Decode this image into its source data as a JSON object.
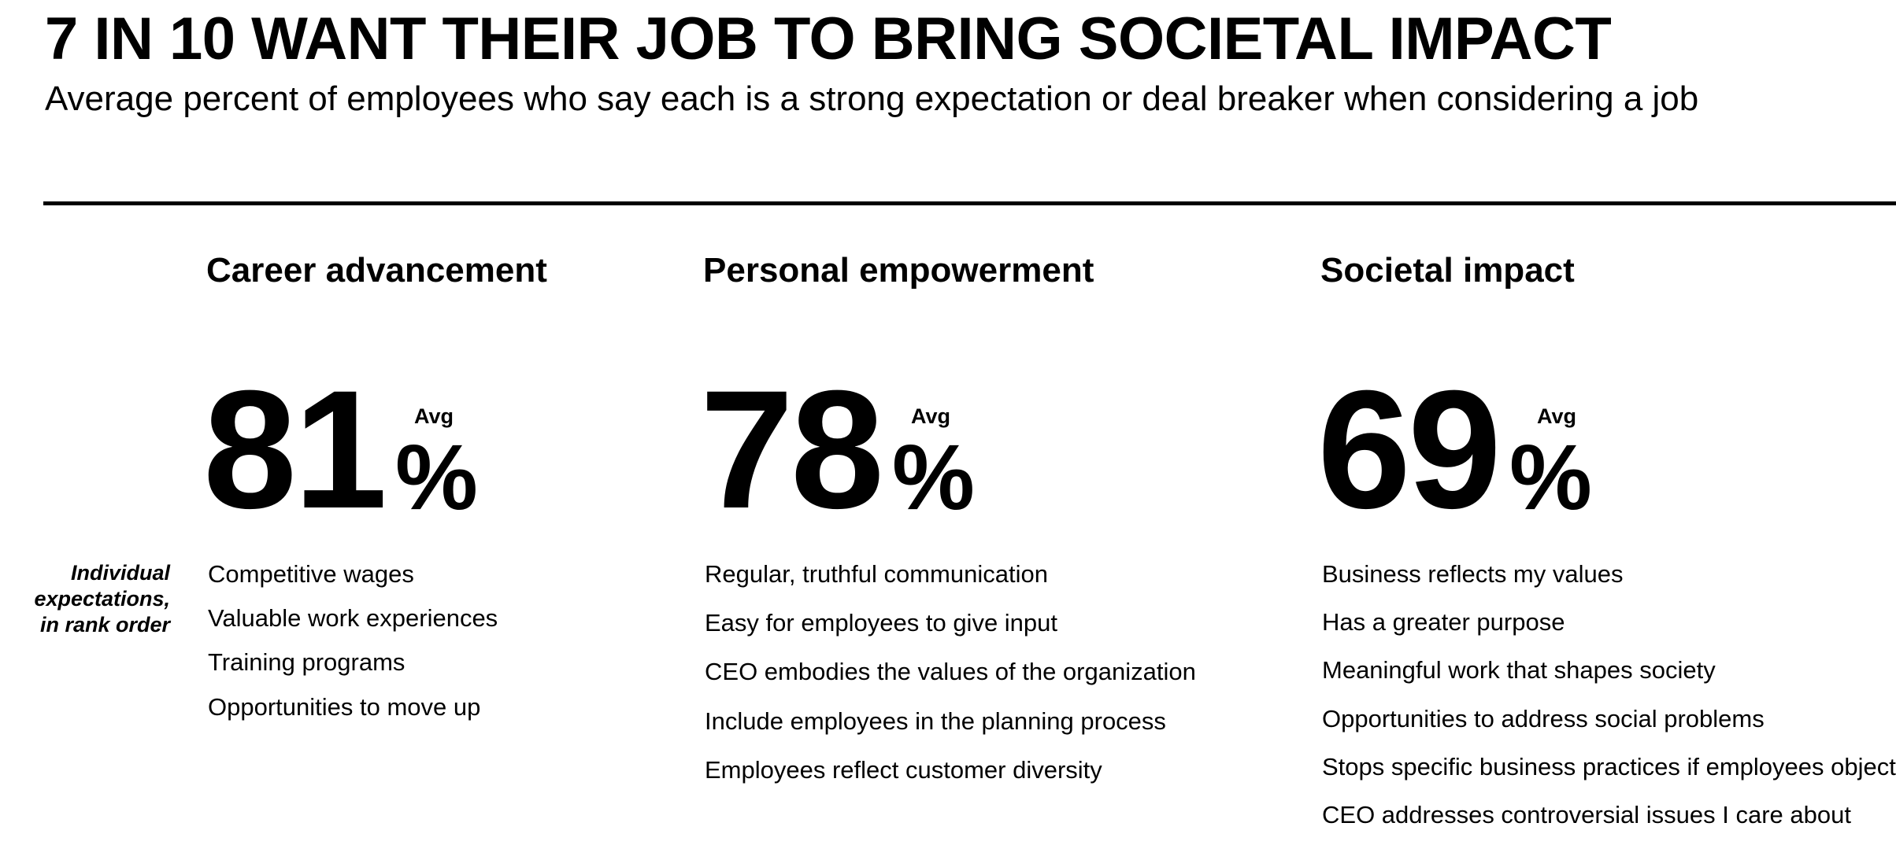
{
  "chart_data": {
    "type": "table",
    "title": "7 IN 10 WANT THEIR JOB TO BRING SOCIETAL IMPACT",
    "subtitle": "Average percent of employees who say each is a strong expectation or deal breaker when considering a job",
    "row_label": "Individual expectations, in rank order",
    "row_label_lines": [
      "Individual",
      "expectations,",
      "in rank order"
    ],
    "avg_label": "Avg",
    "unit": "%",
    "categories": [
      {
        "name": "Career advancement",
        "value": 81,
        "value_text": "81",
        "items": [
          "Competitive wages",
          "Valuable work experiences",
          "Training programs",
          "Opportunities to move up"
        ]
      },
      {
        "name": "Personal empowerment",
        "value": 78,
        "value_text": "78",
        "items": [
          "Regular, truthful communication",
          "Easy for employees to give input",
          "CEO embodies the values of the organization",
          "Include employees in the planning process",
          "Employees reflect customer diversity"
        ]
      },
      {
        "name": "Societal impact",
        "value": 69,
        "value_text": "69",
        "items": [
          "Business reflects my values",
          "Has a greater purpose",
          "Meaningful work that shapes society",
          "Opportunities to address social problems",
          "Stops specific business practices if employees object",
          "CEO addresses controversial issues I care about"
        ]
      }
    ]
  }
}
